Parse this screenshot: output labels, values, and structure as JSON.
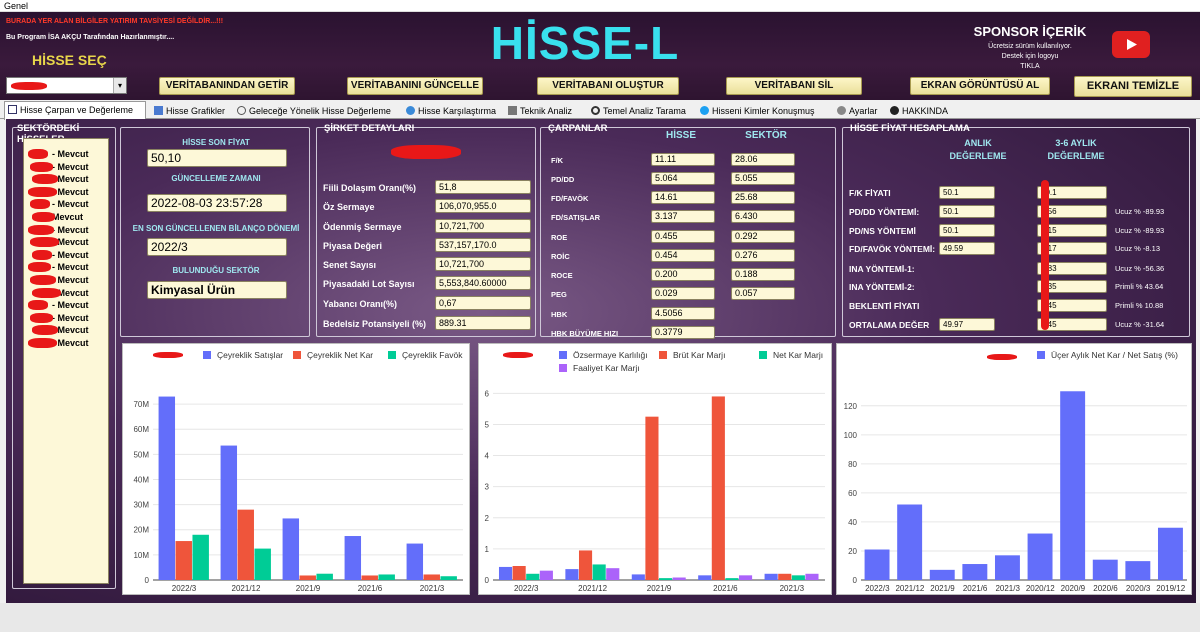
{
  "window": {
    "title": "Genel"
  },
  "header": {
    "warning": "BURADA YER ALAN BİLGİLER YATIRIM TAVSİYESİ DEĞİLDİR...!!!",
    "author": "Bu Program İSA AKÇU Tarafından Hazırlanmıştır....",
    "app_title": "HİSSE-L",
    "select_label": "HİSSE SEÇ",
    "sponsor_title": "SPONSOR İÇERİK",
    "sponsor_line1": "Ücretsiz sürüm kullanılıyor.",
    "sponsor_line2": "Destek için logoyu",
    "sponsor_line3": "TIKLA",
    "buttons": {
      "fetch": "VERİTABANINDAN GETİR",
      "update": "VERİTABANINI GÜNCELLE",
      "create": "VERİTABANI OLUŞTUR",
      "delete": "VERİTABANI SİL",
      "screenshot": "EKRAN GÖRÜNTÜSÜ AL",
      "clear": "EKRANI TEMİZLE"
    },
    "youtube_color": "#e02020"
  },
  "tabs": [
    {
      "label": "Hisse Çarpan ve Değerleme",
      "icon": "chart-check-icon",
      "active": true
    },
    {
      "label": "Hisse Grafikler",
      "icon": "bar-chart-icon"
    },
    {
      "label": "Geleceğe Yönelik Hisse Değerleme",
      "icon": "clock-icon"
    },
    {
      "label": "Hisse Karşılaştırma",
      "icon": "globe-icon"
    },
    {
      "label": "Teknik Analiz",
      "icon": "tools-icon"
    },
    {
      "label": "Temel Analiz Tarama",
      "icon": "magnifier-icon"
    },
    {
      "label": "Hisseni Kimler Konuşmuş",
      "icon": "twitter-icon"
    },
    {
      "label": "Ayarlar",
      "icon": "gear-icon"
    },
    {
      "label": "HAKKINDA",
      "icon": "info-icon"
    }
  ],
  "sector_stocks": {
    "title": "SEKTÖRDEKİ HİSSELER",
    "items": [
      "- Mevcut",
      "- Mevcut",
      "- Mevcut",
      "- Mevcut",
      "- Mevcut",
      "Mevcut",
      "- Mevcut",
      "- Mevcut",
      "- Mevcut",
      "- Mevcut",
      "- Mevcut",
      "- Mevcut",
      "- Mevcut",
      "- Mevcut",
      "- Mevcut",
      "- Mevcut"
    ]
  },
  "stock_info": {
    "price_label": "HİSSE SON FİYAT",
    "price": "50,10",
    "updated_label": "GÜNCELLEME ZAMANI",
    "updated": "2022-08-03 23:57:28",
    "balance_label": "EN SON GÜNCELLENEN BİLANÇO DÖNEMİ",
    "balance": "2022/3",
    "sector_label": "BULUNDUĞU SEKTÖR",
    "sector": "Kimyasal Ürün"
  },
  "company": {
    "title": "ŞİRKET DETAYLARI",
    "rows": [
      {
        "label": "Fiili Dolaşım Oranı(%)",
        "value": "51,8"
      },
      {
        "label": "Öz Sermaye",
        "value": "106,070,955.0"
      },
      {
        "label": "Ödenmiş Sermaye",
        "value": "10,721,700"
      },
      {
        "label": "Piyasa Değeri",
        "value": "537,157,170.0"
      },
      {
        "label": "Senet Sayısı",
        "value": "10,721,700"
      },
      {
        "label": "Piyasadaki Lot Sayısı",
        "value": "5,553,840.60000"
      },
      {
        "label": "Yabancı Oranı(%)",
        "value": "0,67"
      },
      {
        "label": "Bedelsiz Potansiyeli (%)",
        "value": "889.31"
      }
    ]
  },
  "multiples": {
    "title": "ÇARPANLAR",
    "col_stock": "HİSSE",
    "col_sector": "SEKTÖR",
    "rows": [
      {
        "label": "F/K",
        "stock": "11.11",
        "sector": "28.06"
      },
      {
        "label": "PD/DD",
        "stock": "5.064",
        "sector": "5.055"
      },
      {
        "label": "FD/FAVÖK",
        "stock": "14.61",
        "sector": "25.68"
      },
      {
        "label": "FD/SATIŞLAR",
        "stock": "3.137",
        "sector": "6.430"
      },
      {
        "label": "ROE",
        "stock": "0.455",
        "sector": "0.292"
      },
      {
        "label": "ROİC",
        "stock": "0.454",
        "sector": "0.276"
      },
      {
        "label": "ROCE",
        "stock": "0.200",
        "sector": "0.188"
      },
      {
        "label": "PEG",
        "stock": "0.029",
        "sector": "0.057"
      },
      {
        "label": "HBK",
        "stock": "4.5056",
        "sector": ""
      },
      {
        "label": "HBK BÜYÜME HIZI",
        "stock": "0.3779",
        "sector": ""
      }
    ]
  },
  "valuation": {
    "title": "HİSSE FİYAT HESAPLAMA",
    "col1": "ANLIK",
    "col1b": "DEĞERLEME",
    "col2": "3-6 AYLIK",
    "col2b": "DEĞERLEME",
    "rows": [
      {
        "label": "F/K FİYATI",
        "v1": "50.1",
        "v2": "50.1",
        "note": ""
      },
      {
        "label": "PD/DD YÖNTEMİ:",
        "v1": "50.1",
        "v2": ".156",
        "note": "Ucuz % -89.93"
      },
      {
        "label": "PD/NS YÖNTEMİ",
        "v1": "50.1",
        "v2": "5.15",
        "note": "Ucuz % -89.93"
      },
      {
        "label": "FD/FAVÖK YÖNTEMİ:",
        "v1": "49.59",
        "v2": "5.17",
        "note": "Ucuz % -8.13"
      },
      {
        "label": "INA YÖNTEMİ-1:",
        "v1": "",
        "v2": "3.83",
        "note": "Ucuz % -56.36"
      },
      {
        "label": "INA YÖNTEMİ-2:",
        "v1": "",
        "v2": "4.35",
        "note": "Primli % 43.64"
      },
      {
        "label": "BEKLENTİ FİYATI",
        "v1": "",
        "v2": "5.45",
        "note": "Primli % 10.88"
      },
      {
        "label": "ORTALAMA DEĞER",
        "v1": "49.97",
        "v2": "5.45",
        "note": "Ucuz % -31.64"
      }
    ]
  },
  "chart_data": [
    {
      "type": "bar",
      "categories": [
        "2022/3",
        "2021/12",
        "2021/9",
        "2021/6",
        "2021/3"
      ],
      "series": [
        {
          "name": "Çeyreklik Satışlar",
          "color": "#636efa",
          "values": [
            73,
            53.5,
            24.5,
            17.5,
            14.5
          ]
        },
        {
          "name": "Çeyreklik Net Kar",
          "color": "#ef553b",
          "values": [
            15.5,
            28,
            1.8,
            1.8,
            2.2
          ]
        },
        {
          "name": "Çeyreklik Favök",
          "color": "#00cc96",
          "values": [
            18,
            12.5,
            2.5,
            2.2,
            1.5
          ]
        }
      ],
      "yticks": [
        "0",
        "10M",
        "20M",
        "30M",
        "40M",
        "50M",
        "60M",
        "70M"
      ],
      "ylim": [
        0,
        78
      ]
    },
    {
      "type": "bar",
      "categories": [
        "2022/3",
        "2021/12",
        "2021/9",
        "2021/6",
        "2021/3"
      ],
      "series": [
        {
          "name": "Özsermaye Karlılığı",
          "color": "#636efa",
          "values": [
            0.42,
            0.35,
            0.18,
            0.15,
            0.2
          ]
        },
        {
          "name": "Brüt Kar Marjı",
          "color": "#ef553b",
          "values": [
            0.45,
            0.95,
            5.25,
            5.9,
            0.2
          ]
        },
        {
          "name": "Net Kar Marjı",
          "color": "#00cc96",
          "values": [
            0.2,
            0.5,
            0.06,
            0.06,
            0.15
          ]
        },
        {
          "name": "Faaliyet Kar Marjı",
          "color": "#ab63fa",
          "values": [
            0.3,
            0.38,
            0.08,
            0.15,
            0.2
          ]
        }
      ],
      "yticks": [
        "0",
        "1",
        "2",
        "3",
        "4",
        "5",
        "6"
      ],
      "ylim": [
        0,
        6.3
      ]
    },
    {
      "type": "bar",
      "categories": [
        "2022/3",
        "2021/12",
        "2021/9",
        "2021/6",
        "2021/3",
        "2020/12",
        "2020/9",
        "2020/6",
        "2020/3",
        "2019/12"
      ],
      "series": [
        {
          "name": "Üçer Aylık Net Kar / Net Satış (%)",
          "color": "#636efa",
          "values": [
            21,
            52,
            7,
            11,
            17,
            32,
            130,
            14,
            13,
            36
          ]
        }
      ],
      "yticks": [
        "0",
        "20",
        "40",
        "60",
        "80",
        "100",
        "120"
      ],
      "ylim": [
        0,
        135
      ]
    }
  ]
}
